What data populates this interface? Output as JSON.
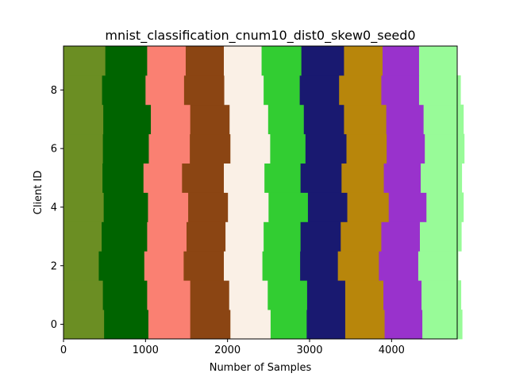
{
  "chart_data": {
    "type": "bar",
    "orientation": "horizontal-stacked",
    "title": "mnist_classification_cnum10_dist0_skew0_seed0",
    "xlabel": "Number of Samples",
    "ylabel": "Client ID",
    "xlim": [
      0,
      4800
    ],
    "ylim": [
      -0.5,
      9.5
    ],
    "xticks": [
      0,
      1000,
      2000,
      3000,
      4000
    ],
    "yticks": [
      0,
      2,
      4,
      6,
      8
    ],
    "categories": [
      "0",
      "1",
      "2",
      "3",
      "4",
      "5",
      "6",
      "7",
      "8",
      "9"
    ],
    "series": [
      {
        "color": "#6b8e23",
        "values": [
          495,
          480,
          430,
          465,
          490,
          475,
          480,
          485,
          470,
          510
        ]
      },
      {
        "color": "#006400",
        "values": [
          540,
          540,
          555,
          555,
          540,
          500,
          560,
          580,
          530,
          510
        ]
      },
      {
        "color": "#fa8072",
        "values": [
          510,
          525,
          480,
          480,
          490,
          470,
          500,
          480,
          470,
          470
        ]
      },
      {
        "color": "#8b4513",
        "values": [
          490,
          475,
          490,
          475,
          485,
          510,
          495,
          480,
          490,
          465
        ]
      },
      {
        "color": "#faf0e6",
        "values": [
          490,
          470,
          470,
          465,
          495,
          495,
          485,
          470,
          480,
          460
        ]
      },
      {
        "color": "#32cd32",
        "values": [
          440,
          480,
          460,
          450,
          480,
          440,
          430,
          435,
          440,
          485
        ]
      },
      {
        "color": "#191970",
        "values": [
          470,
          465,
          460,
          490,
          480,
          500,
          500,
          490,
          480,
          520
        ]
      },
      {
        "color": "#b8860b",
        "values": [
          480,
          465,
          500,
          495,
          505,
          515,
          490,
          515,
          515,
          470
        ]
      },
      {
        "color": "#9932cc",
        "values": [
          460,
          465,
          480,
          470,
          460,
          450,
          465,
          455,
          460,
          445
        ]
      },
      {
        "color": "#98fb98",
        "values": [
          485,
          480,
          485,
          505,
          450,
          500,
          480,
          485,
          505,
          455
        ]
      }
    ]
  }
}
